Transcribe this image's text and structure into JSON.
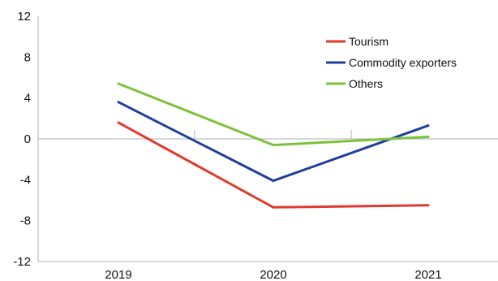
{
  "chart_data": {
    "type": "line",
    "title": "",
    "xlabel": "",
    "ylabel": "",
    "categories": [
      "2019",
      "2020",
      "2021"
    ],
    "ylim": [
      -12,
      12
    ],
    "yticks": [
      12,
      8,
      4,
      0,
      -4,
      -8,
      -12
    ],
    "grid": false,
    "legend_position": "top-right",
    "series": [
      {
        "name": "Tourism",
        "color": "#e03a2f",
        "values": [
          1.6,
          -6.7,
          -6.5
        ]
      },
      {
        "name": "Commodity exporters",
        "color": "#1f3e9e",
        "values": [
          3.6,
          -4.1,
          1.3
        ]
      },
      {
        "name": "Others",
        "color": "#7dc23a",
        "values": [
          5.4,
          -0.6,
          0.2
        ]
      }
    ]
  }
}
